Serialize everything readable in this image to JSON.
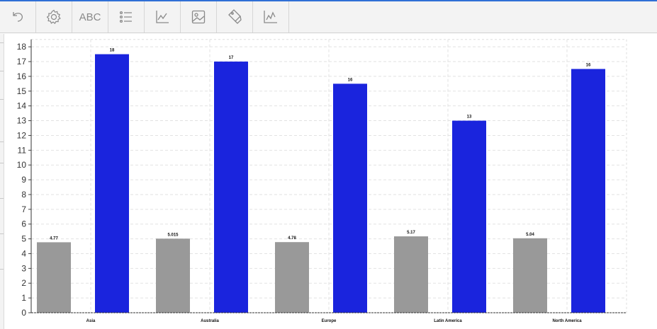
{
  "toolbar": {
    "buttons": [
      {
        "name": "undo-button",
        "icon": "undo-icon"
      },
      {
        "name": "settings-button",
        "icon": "gear-icon"
      },
      {
        "name": "text-button",
        "icon": "abc-icon",
        "label": "ABC"
      },
      {
        "name": "list-button",
        "icon": "list-icon"
      },
      {
        "name": "axis-button",
        "icon": "axis-chart-icon"
      },
      {
        "name": "image-button",
        "icon": "image-icon"
      },
      {
        "name": "tag-button",
        "icon": "tag-icon"
      },
      {
        "name": "line-chart-button",
        "icon": "line-chart-icon"
      }
    ]
  },
  "chart_data": {
    "type": "bar",
    "categories": [
      "Asia",
      "Australia",
      "Europe",
      "Latin America",
      "North America"
    ],
    "series": [
      {
        "values": [
          4.77,
          5.015,
          4.78,
          5.17,
          5.04
        ],
        "labels": [
          "4.77",
          "5.015",
          "4.78",
          "5.17",
          "5.04"
        ],
        "color": "#999999"
      },
      {
        "values": [
          17.5,
          17,
          15.5,
          13,
          16.5
        ],
        "labels": [
          "18",
          "17",
          "16",
          "13",
          "16"
        ],
        "color": "#1a24dd"
      }
    ],
    "yticks": [
      "0",
      "1",
      "2",
      "3",
      "4",
      "5",
      "6",
      "7",
      "8",
      "9",
      "10",
      "11",
      "12",
      "13",
      "14",
      "15",
      "16",
      "17",
      "18"
    ],
    "ylim": [
      0,
      18.5
    ],
    "grid": true,
    "title": "",
    "xlabel": "",
    "ylabel": ""
  }
}
